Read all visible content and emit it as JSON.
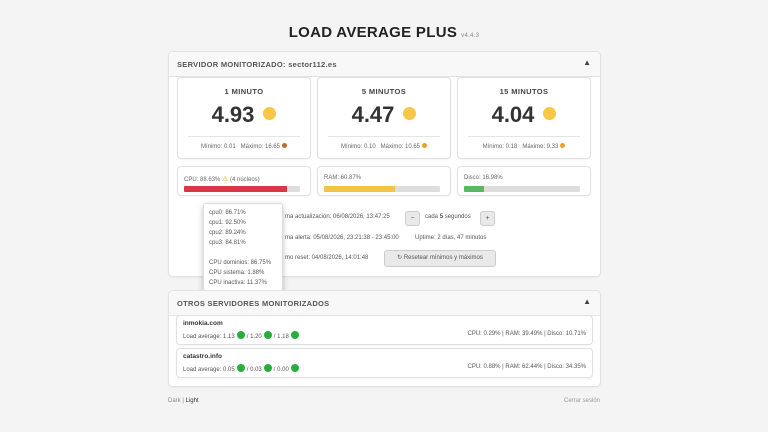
{
  "app": {
    "title": "LOAD AVERAGE PLUS",
    "version": "v4.4.3"
  },
  "main_panel": {
    "header": "SERVIDOR MONITORIZADO: sector112.es",
    "toggle_icon": "▲"
  },
  "load_cards": [
    {
      "title": "1 MINUTO",
      "value": "4.93",
      "min_text": "Mínimo: 0.01",
      "max_text": "Máximo: 16.65",
      "dot_color": "#f9c747",
      "max_dot_color": "#c0692a"
    },
    {
      "title": "5 MINUTOS",
      "value": "4.47",
      "min_text": "Mínimo: 0.10",
      "max_text": "Máximo: 10.65",
      "dot_color": "#f9c747",
      "max_dot_color": "#f0a020"
    },
    {
      "title": "15 MINUTOS",
      "value": "4.04",
      "min_text": "Mínimo: 0.18",
      "max_text": "Máximo: 9.33",
      "dot_color": "#f9c747",
      "max_dot_color": "#f0a020"
    }
  ],
  "resources": {
    "cpu": {
      "label": "CPU: 88.63%",
      "cores": "(4 núcleos)",
      "percent": 88.63,
      "color": "#dc3545",
      "warn_icon": "⚠"
    },
    "ram": {
      "label": "RAM: 60.87%",
      "percent": 60.87,
      "color": "#f6c445"
    },
    "disk": {
      "label": "Disco: 16.98%",
      "percent": 16.98,
      "color": "#5cb85c"
    }
  },
  "info": {
    "update_label": "ma actualización: 06/08/2026, 13:47:25",
    "minus_label": "−",
    "every_prefix": "cada",
    "every_value": "5",
    "every_suffix": "segundos",
    "plus_label": "+",
    "alert_label": "ma alerta: 05/08/2026, 23:21:38 - 23:45:00",
    "uptime_label": "Uptime: 2 días, 47 minutos",
    "reset_label": "mo reset: 04/08/2026, 14:01:48",
    "reset_button": "↻ Resetear mínimos y máximos"
  },
  "cpu_tooltip": {
    "cores": [
      "cpu0: 86.71%",
      "cpu1: 92.50%",
      "cpu2: 89.24%",
      "cpu3: 84.81%"
    ],
    "domain": "CPU dominios: 86.75%",
    "system": "CPU sistema: 1.88%",
    "idle": "CPU inactiva: 11.37%"
  },
  "other_panel": {
    "header": "OTROS SERVIDORES MONITORIZADOS",
    "toggle_icon": "▲"
  },
  "servers": [
    {
      "name": "inmokia.com",
      "la_label": "Load average:",
      "l1": "1.13",
      "l5": "1.20",
      "l15": "1.18",
      "stats": "CPU: 0.29% | RAM: 39.49% | Disco: 10.71%",
      "dot_color": "#27ae3b"
    },
    {
      "name": "catastro.info",
      "la_label": "Load average:",
      "l1": "0.05",
      "l5": "0.03",
      "l15": "0.00",
      "stats": "CPU: 0.88% | RAM: 62.44% | Disco: 34.35%",
      "dot_color": "#27ae3b"
    }
  ],
  "footer": {
    "dark": "Dark",
    "separator": "|",
    "light": "Light",
    "logout": "Cerrar sesión"
  }
}
